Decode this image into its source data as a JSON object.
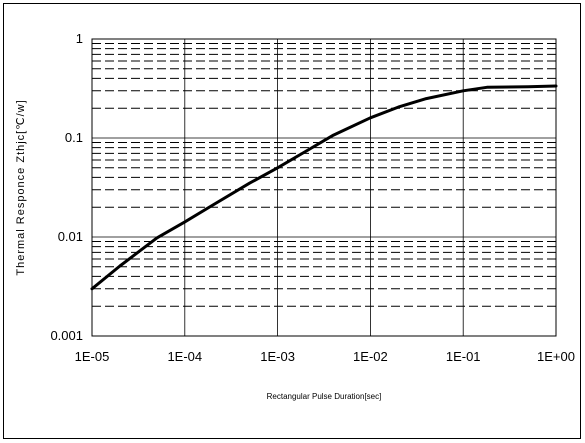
{
  "chart_data": {
    "type": "line",
    "title": "",
    "xlabel": "Rectangular Pulse Duration[sec]",
    "ylabel": "Thermal Responce Zthjc[℃/w]",
    "x_scale": "log",
    "y_scale": "log",
    "xlim": [
      1e-05,
      1
    ],
    "ylim": [
      0.001,
      1
    ],
    "x_tick_labels": [
      "1E-05",
      "1E-04",
      "1E-03",
      "1E-02",
      "1E-01",
      "1E+00"
    ],
    "y_tick_labels": [
      "0.001",
      "0.01",
      "0.1",
      "1"
    ],
    "grid": {
      "major": true,
      "minor_dashed": true
    },
    "colors": {
      "line": "#000000",
      "grid": "#000000"
    },
    "series": [
      {
        "x": [
          1e-05,
          2e-05,
          5e-05,
          0.0001,
          0.0002,
          0.0005,
          0.001,
          0.002,
          0.004,
          0.01,
          0.02,
          0.04,
          0.1,
          0.18,
          0.5,
          1
        ],
        "y": [
          0.003,
          0.0051,
          0.0098,
          0.0142,
          0.021,
          0.035,
          0.05,
          0.073,
          0.107,
          0.16,
          0.205,
          0.25,
          0.3,
          0.325,
          0.33,
          0.335
        ]
      }
    ]
  }
}
